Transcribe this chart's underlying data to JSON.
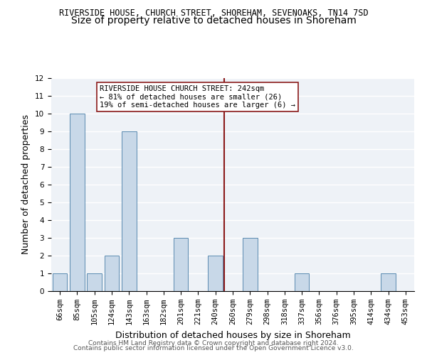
{
  "title1": "RIVERSIDE HOUSE, CHURCH STREET, SHOREHAM, SEVENOAKS, TN14 7SD",
  "title2": "Size of property relative to detached houses in Shoreham",
  "xlabel": "Distribution of detached houses by size in Shoreham",
  "ylabel": "Number of detached properties",
  "categories": [
    "66sqm",
    "85sqm",
    "105sqm",
    "124sqm",
    "143sqm",
    "163sqm",
    "182sqm",
    "201sqm",
    "221sqm",
    "240sqm",
    "260sqm",
    "279sqm",
    "298sqm",
    "318sqm",
    "337sqm",
    "356sqm",
    "376sqm",
    "395sqm",
    "414sqm",
    "434sqm",
    "453sqm"
  ],
  "values": [
    1,
    10,
    1,
    2,
    9,
    0,
    0,
    3,
    0,
    2,
    0,
    3,
    0,
    0,
    1,
    0,
    0,
    0,
    0,
    1,
    0
  ],
  "bar_color": "#c8d8e8",
  "bar_edge_color": "#5a8ab0",
  "vline_x": 9.5,
  "vline_color": "#8b1a1a",
  "annotation_text": "RIVERSIDE HOUSE CHURCH STREET: 242sqm\n← 81% of detached houses are smaller (26)\n19% of semi-detached houses are larger (6) →",
  "annotation_box_color": "white",
  "annotation_box_edge": "#8b1a1a",
  "ylim": [
    0,
    12
  ],
  "yticks": [
    0,
    1,
    2,
    3,
    4,
    5,
    6,
    7,
    8,
    9,
    10,
    11,
    12
  ],
  "footer1": "Contains HM Land Registry data © Crown copyright and database right 2024.",
  "footer2": "Contains public sector information licensed under the Open Government Licence v3.0.",
  "bg_color": "#eef2f7",
  "grid_color": "white",
  "title1_fontsize": 8.5,
  "title2_fontsize": 10,
  "xlabel_fontsize": 9,
  "ylabel_fontsize": 9,
  "tick_fontsize": 7.5,
  "annot_fontsize": 7.5,
  "footer_fontsize": 6.5
}
